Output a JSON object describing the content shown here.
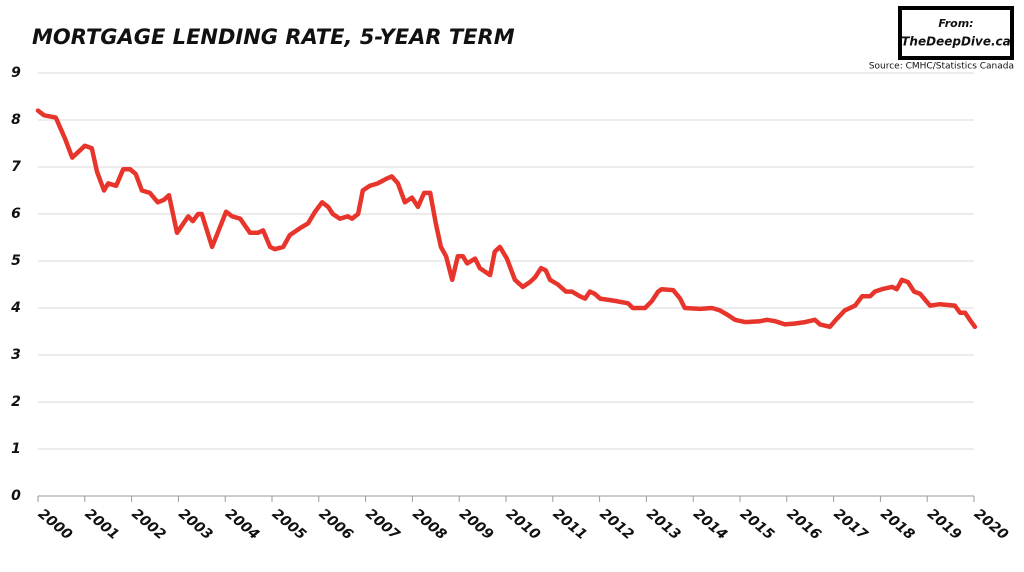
{
  "chart_data": {
    "type": "line",
    "title": "MORTGAGE LENDING RATE, 5-YEAR TERM",
    "annotations": [
      "From:",
      "TheDeepDive.ca",
      "Source: CMHC/Statistics Canada"
    ],
    "x": [
      2000.0,
      2000.13,
      2000.38,
      2000.58,
      2000.73,
      2001.0,
      2001.15,
      2001.26,
      2001.41,
      2001.5,
      2001.67,
      2001.82,
      2001.97,
      2002.09,
      2002.22,
      2002.39,
      2002.56,
      2002.69,
      2002.8,
      2002.97,
      2003.21,
      2003.31,
      2003.42,
      2003.5,
      2003.72,
      2004.02,
      2004.15,
      2004.32,
      2004.53,
      2004.7,
      2004.81,
      2004.96,
      2005.06,
      2005.24,
      2005.38,
      2005.6,
      2005.77,
      2005.92,
      2006.07,
      2006.2,
      2006.3,
      2006.45,
      2006.62,
      2006.71,
      2006.84,
      2006.94,
      2007.09,
      2007.26,
      2007.44,
      2007.56,
      2007.69,
      2007.84,
      2007.99,
      2008.12,
      2008.25,
      2008.38,
      2008.5,
      2008.61,
      2008.72,
      2008.85,
      2008.97,
      2009.08,
      2009.17,
      2009.34,
      2009.44,
      2009.66,
      2009.76,
      2009.87,
      2010.02,
      2010.19,
      2010.36,
      2010.51,
      2010.62,
      2010.75,
      2010.85,
      2010.94,
      2011.11,
      2011.28,
      2011.41,
      2011.58,
      2011.69,
      2011.79,
      2011.9,
      2012.01,
      2012.33,
      2012.61,
      2012.71,
      2012.97,
      2013.12,
      2013.25,
      2013.33,
      2013.57,
      2013.72,
      2013.82,
      2014.15,
      2014.4,
      2014.57,
      2014.74,
      2014.89,
      2015.11,
      2015.43,
      2015.58,
      2015.75,
      2015.96,
      2016.18,
      2016.39,
      2016.6,
      2016.71,
      2016.92,
      2017.05,
      2017.24,
      2017.46,
      2017.61,
      2017.78,
      2017.88,
      2018.03,
      2018.25,
      2018.35,
      2018.46,
      2018.59,
      2018.72,
      2018.85,
      2019.06,
      2019.27,
      2019.59,
      2019.7,
      2019.81,
      2019.91,
      2020.02
    ],
    "series": [
      {
        "name": "Mortgage lending rate, 5-year term",
        "color": "#e8352b",
        "values": [
          8.2,
          8.1,
          8.05,
          7.6,
          7.2,
          7.45,
          7.4,
          6.9,
          6.5,
          6.65,
          6.6,
          6.95,
          6.95,
          6.85,
          6.5,
          6.45,
          6.25,
          6.3,
          6.4,
          5.6,
          5.95,
          5.85,
          6.0,
          6.0,
          5.3,
          6.05,
          5.95,
          5.9,
          5.6,
          5.6,
          5.65,
          5.3,
          5.25,
          5.3,
          5.55,
          5.7,
          5.8,
          6.05,
          6.25,
          6.15,
          6.0,
          5.9,
          5.95,
          5.9,
          6.0,
          6.5,
          6.6,
          6.65,
          6.75,
          6.8,
          6.65,
          6.25,
          6.35,
          6.15,
          6.45,
          6.45,
          5.8,
          5.3,
          5.1,
          4.6,
          5.1,
          5.1,
          4.95,
          5.05,
          4.85,
          4.7,
          5.2,
          5.3,
          5.05,
          4.6,
          4.45,
          4.55,
          4.65,
          4.85,
          4.8,
          4.6,
          4.5,
          4.35,
          4.35,
          4.25,
          4.2,
          4.35,
          4.3,
          4.2,
          4.15,
          4.1,
          4.0,
          4.0,
          4.15,
          4.35,
          4.4,
          4.38,
          4.2,
          4.0,
          3.98,
          4.0,
          3.95,
          3.85,
          3.75,
          3.7,
          3.72,
          3.75,
          3.72,
          3.65,
          3.67,
          3.7,
          3.75,
          3.65,
          3.6,
          3.75,
          3.95,
          4.05,
          4.25,
          4.25,
          4.35,
          4.4,
          4.45,
          4.4,
          4.6,
          4.55,
          4.35,
          4.3,
          4.05,
          4.08,
          4.05,
          3.9,
          3.9,
          3.75,
          3.6
        ]
      }
    ],
    "xlim": [
      2000,
      2020
    ],
    "xticks": [
      2000,
      2001,
      2002,
      2003,
      2004,
      2005,
      2006,
      2007,
      2008,
      2009,
      2010,
      2011,
      2012,
      2013,
      2014,
      2015,
      2016,
      2017,
      2018,
      2019,
      2020
    ],
    "ylim": [
      0,
      9
    ],
    "yticks": [
      0,
      1,
      2,
      3,
      4,
      5,
      6,
      7,
      8,
      9
    ],
    "grid": true
  }
}
